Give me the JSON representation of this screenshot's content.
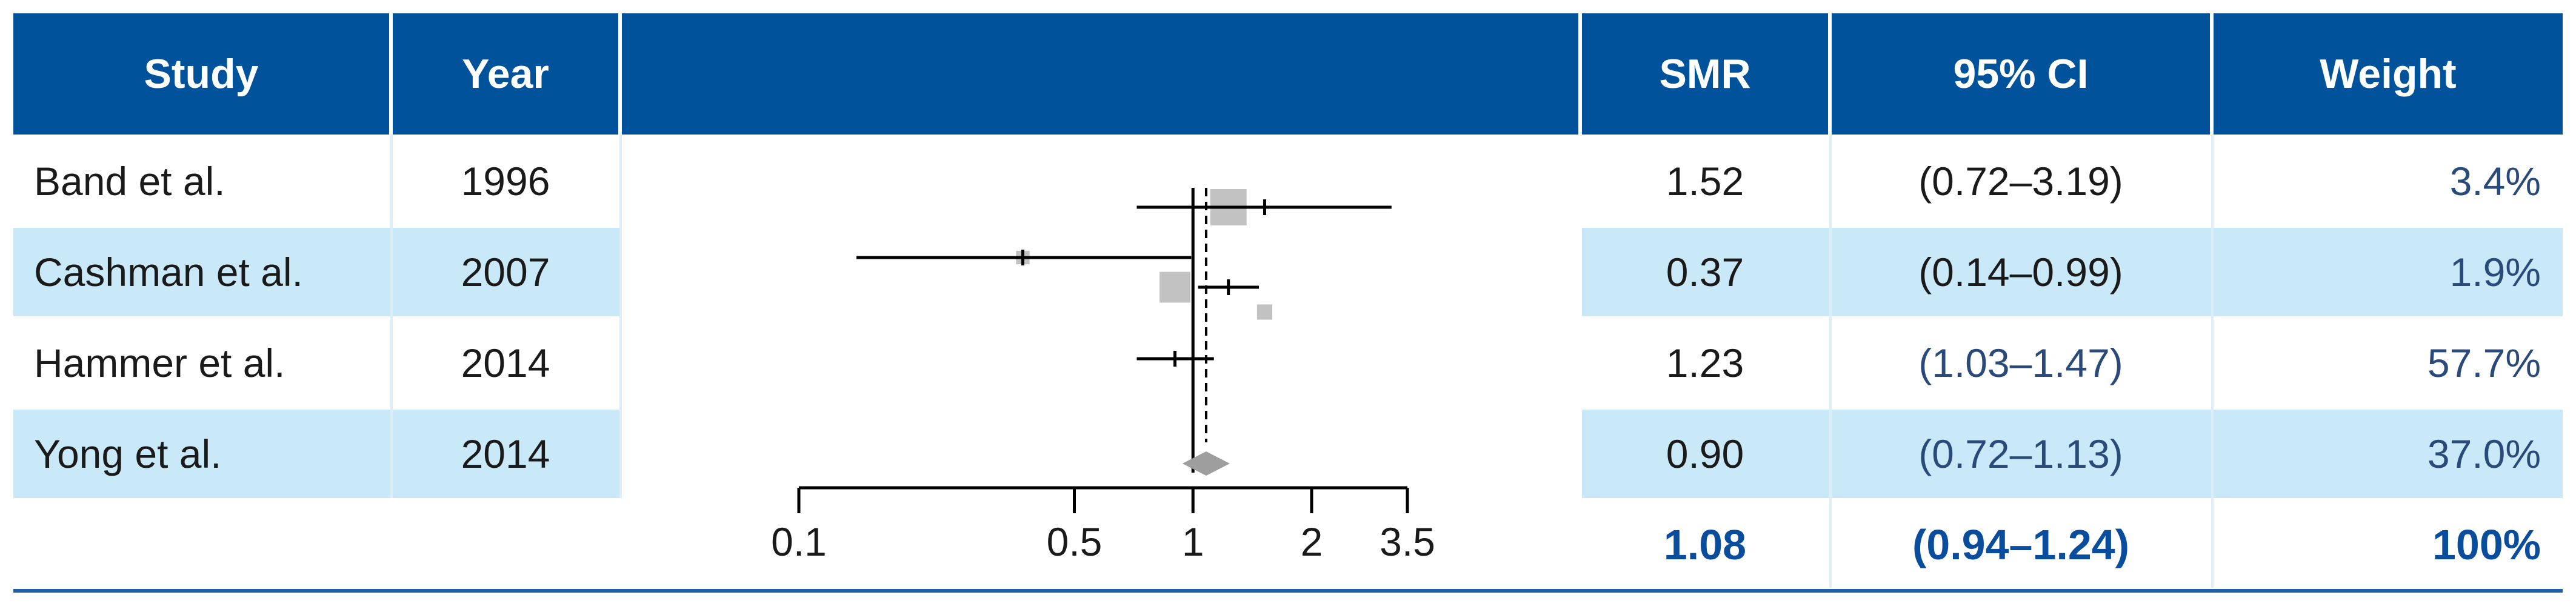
{
  "header": {
    "study": "Study",
    "year": "Year",
    "smr": "SMR",
    "ci": "95% CI",
    "weight": "Weight"
  },
  "rows": [
    {
      "study": "Band et al.",
      "year": "1996",
      "smr": "1.52",
      "ci": "(0.72–3.19)",
      "weight": "3.4%"
    },
    {
      "study": "Cashman et al.",
      "year": "2007",
      "smr": "0.37",
      "ci": "(0.14–0.99)",
      "weight": "1.9%"
    },
    {
      "study": "Hammer et al.",
      "year": "2014",
      "smr": "1.23",
      "ci": "(1.03–1.47)",
      "weight": "57.7%"
    },
    {
      "study": "Yong et al.",
      "year": "2014",
      "smr": "0.90",
      "ci": "(0.72–1.13)",
      "weight": "37.0%"
    }
  ],
  "total": {
    "smr": "1.08",
    "ci": "(0.94–1.24)",
    "weight": "100%"
  },
  "colors": {
    "header_bg": "#00529b",
    "band_bg": "#c9e8f8",
    "total_text": "#0a4d9c",
    "square": "#c2c2c2"
  },
  "chart_data": {
    "type": "forest",
    "scale": "log",
    "x_ticks": [
      0.1,
      0.5,
      1,
      2,
      3.5
    ],
    "x_tick_labels": [
      "0.1",
      "0.5",
      "1",
      "2",
      "3.5"
    ],
    "xlim": [
      0.1,
      3.5
    ],
    "reference_line": 1,
    "pooled_dashed_line": 1.08,
    "studies": [
      {
        "name": "Band et al.",
        "estimate": 1.52,
        "lower": 0.72,
        "upper": 3.19,
        "weight": 3.4
      },
      {
        "name": "Cashman et al.",
        "estimate": 0.37,
        "lower": 0.14,
        "upper": 0.99,
        "weight": 1.9
      },
      {
        "name": "Hammer et al.",
        "estimate": 1.23,
        "lower": 1.03,
        "upper": 1.47,
        "weight": 57.7
      },
      {
        "name": "Yong et al.",
        "estimate": 0.9,
        "lower": 0.72,
        "upper": 1.13,
        "weight": 37.0
      }
    ],
    "pooled": {
      "estimate": 1.08,
      "lower": 0.94,
      "upper": 1.24
    }
  }
}
